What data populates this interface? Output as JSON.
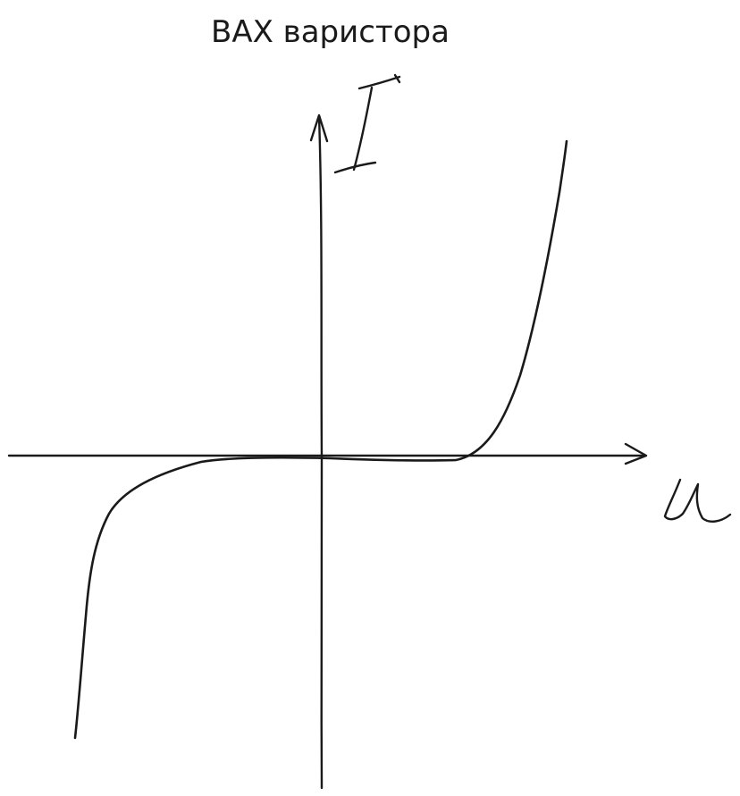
{
  "title": "ВАХ варистора",
  "axes": {
    "y_label": "I",
    "x_label": "U"
  },
  "colors": {
    "ink": "#1a1a1a",
    "background": "#ffffff"
  }
}
